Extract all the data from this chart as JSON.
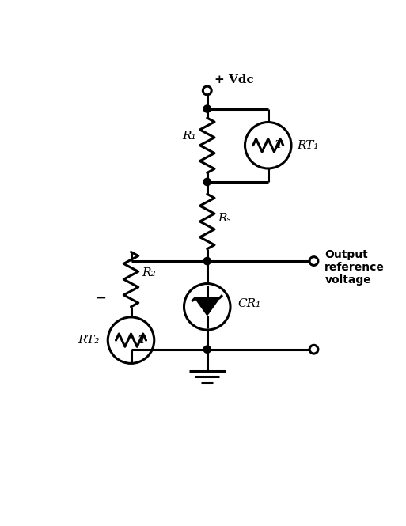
{
  "bg_color": "#ffffff",
  "line_color": "#000000",
  "labels": {
    "vdc": "+ Vdc",
    "R1": "R₁",
    "Rs": "Rₛ",
    "R2": "R₂",
    "RT1": "RT₁",
    "RT2": "RT₂",
    "CR1": "CR₁",
    "output": "Output\nreference\nvoltage"
  },
  "figsize": [
    5.13,
    6.65
  ],
  "dpi": 100
}
